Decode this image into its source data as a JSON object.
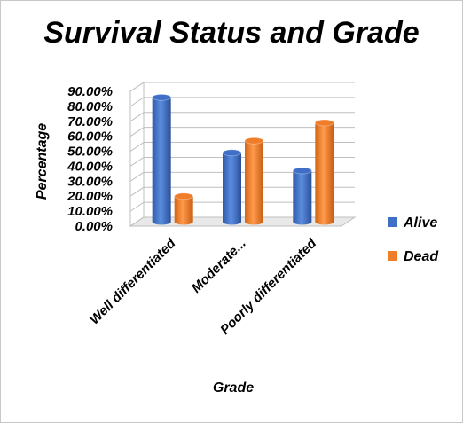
{
  "chart_data": {
    "type": "bar",
    "title": "Survival Status and Grade",
    "xlabel": "Grade",
    "ylabel": "Percentage",
    "categories": [
      "Well differentiated",
      "Moderate...",
      "Poorly differentiated"
    ],
    "series": [
      {
        "name": "Alive",
        "values": [
          83.0,
          46.0,
          34.0
        ],
        "color": "#3f6fc6"
      },
      {
        "name": "Dead",
        "values": [
          17.0,
          54.0,
          66.0
        ],
        "color": "#f07d2a"
      }
    ],
    "ylim": [
      0,
      90
    ],
    "yticks": [
      "0.00%",
      "10.00%",
      "20.00%",
      "30.00%",
      "40.00%",
      "50.00%",
      "60.00%",
      "70.00%",
      "80.00%",
      "90.00%"
    ],
    "grid": true,
    "legend_position": "right",
    "style": "3d-cylinder"
  }
}
